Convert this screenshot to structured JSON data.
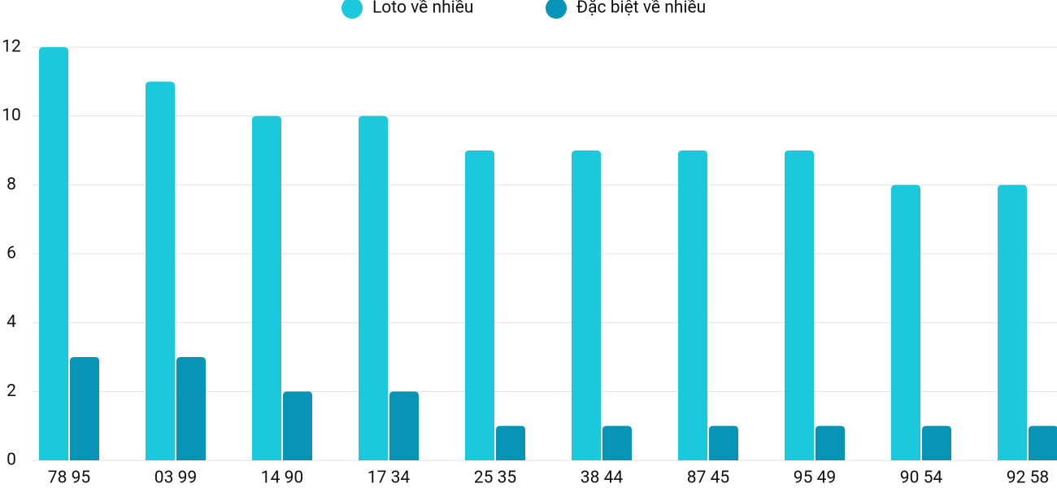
{
  "chart_data": {
    "type": "bar",
    "categories": [
      "78 95",
      "03 99",
      "14 90",
      "17 34",
      "25 35",
      "38 44",
      "87 45",
      "95 49",
      "90 54",
      "92 58"
    ],
    "series": [
      {
        "name": "Loto về nhiều",
        "color": "#1bc8dc",
        "values": [
          12,
          11,
          10,
          10,
          9,
          9,
          9,
          9,
          8,
          8
        ]
      },
      {
        "name": "Đặc biệt về nhiều",
        "color": "#0894b6",
        "values": [
          3,
          3,
          2,
          2,
          1,
          1,
          1,
          1,
          1,
          1
        ]
      }
    ],
    "ylim": [
      0,
      12
    ],
    "yticks": [
      0,
      2,
      4,
      6,
      8,
      10,
      12
    ],
    "grid": true,
    "legend": "top"
  }
}
